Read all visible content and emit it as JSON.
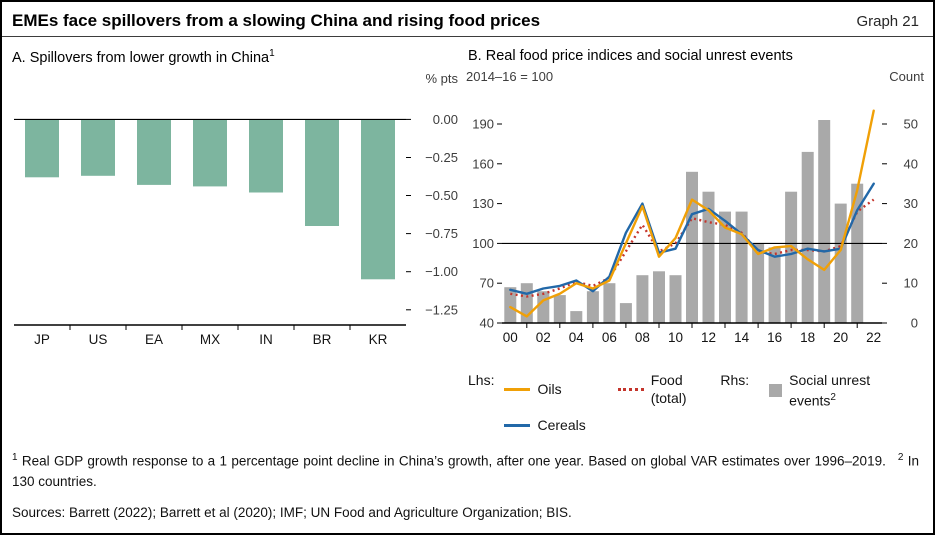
{
  "header": {
    "title": "EMEs face spillovers from a slowing China and rising food prices",
    "graph_label": "Graph 21"
  },
  "legend": {
    "lhs_label": "Lhs:",
    "rhs_label": "Rhs:"
  },
  "footnotes": {
    "f1_sup": "1",
    "f1_text": " Real GDP growth response to a 1 percentage point decline in China’s growth, after one year. Based on global VAR estimates over 1996–2019.",
    "f2_sup": "2",
    "f2_text": " In 130 countries."
  },
  "sources": {
    "text": "Sources: Barrett (2022); Barrett et al (2020); IMF; UN Food and Agriculture Organization; BIS."
  },
  "chart_data": [
    {
      "id": "panel-a",
      "type": "bar",
      "title": "A. Spillovers from lower growth in China",
      "title_sup": "1",
      "unit": "% pts",
      "categories": [
        "JP",
        "US",
        "EA",
        "MX",
        "IN",
        "BR",
        "KR"
      ],
      "values": [
        -0.38,
        -0.37,
        -0.43,
        -0.44,
        -0.48,
        -0.7,
        -1.05
      ],
      "bar_color": "#7db59f",
      "yticks": [
        0.0,
        -0.25,
        -0.5,
        -0.75,
        -1.0,
        -1.25
      ],
      "ylim": [
        -1.35,
        0.16
      ],
      "zero_line": true,
      "grid": false
    },
    {
      "id": "panel-b",
      "type": "combo",
      "title": "B. Real food price indices and social unrest events",
      "left_axis_label": "2014–16 = 100",
      "right_axis_label": "Count",
      "years": [
        2000,
        2001,
        2002,
        2003,
        2004,
        2005,
        2006,
        2007,
        2008,
        2009,
        2010,
        2011,
        2012,
        2013,
        2014,
        2015,
        2016,
        2017,
        2018,
        2019,
        2020,
        2021,
        2022
      ],
      "x_tick_years": [
        2000,
        2002,
        2004,
        2006,
        2008,
        2010,
        2012,
        2014,
        2016,
        2018,
        2020,
        2022
      ],
      "x_tick_labels": [
        "00",
        "02",
        "04",
        "06",
        "08",
        "10",
        "12",
        "14",
        "16",
        "18",
        "20",
        "22"
      ],
      "left_ticks": [
        40,
        70,
        100,
        130,
        160,
        190
      ],
      "right_ticks": [
        0,
        10,
        20,
        30,
        40,
        50
      ],
      "reference_line": 100,
      "series": [
        {
          "name": "Oils",
          "axis": "left",
          "style": "solid",
          "color": "#f0a007",
          "values": [
            52,
            45,
            57,
            62,
            70,
            66,
            72,
            100,
            128,
            90,
            104,
            133,
            125,
            112,
            107,
            92,
            97,
            98,
            88,
            80,
            95,
            140,
            200
          ]
        },
        {
          "name": "Food (total)",
          "axis": "left",
          "style": "dotted",
          "color": "#c4342b",
          "values": [
            62,
            60,
            62,
            66,
            71,
            68,
            74,
            94,
            114,
            94,
            100,
            119,
            116,
            114,
            108,
            94,
            92,
            95,
            95,
            94,
            98,
            124,
            133
          ]
        },
        {
          "name": "Cereals",
          "axis": "left",
          "style": "solid",
          "color": "#2268a8",
          "values": [
            65,
            62,
            66,
            68,
            72,
            64,
            75,
            108,
            130,
            93,
            96,
            122,
            126,
            117,
            107,
            95,
            90,
            92,
            96,
            94,
            96,
            125,
            145
          ]
        }
      ],
      "bars": {
        "name": "Social unrest events",
        "name_sup": "2",
        "axis": "right",
        "color": "#a9a9a9",
        "years": [
          2000,
          2001,
          2002,
          2003,
          2004,
          2005,
          2006,
          2007,
          2008,
          2009,
          2010,
          2011,
          2012,
          2013,
          2014,
          2015,
          2016,
          2017,
          2018,
          2019,
          2020,
          2021
        ],
        "values": [
          9,
          10,
          8,
          7,
          3,
          8,
          10,
          5,
          12,
          13,
          12,
          38,
          33,
          28,
          28,
          20,
          19,
          33,
          43,
          51,
          30,
          35
        ]
      }
    }
  ]
}
